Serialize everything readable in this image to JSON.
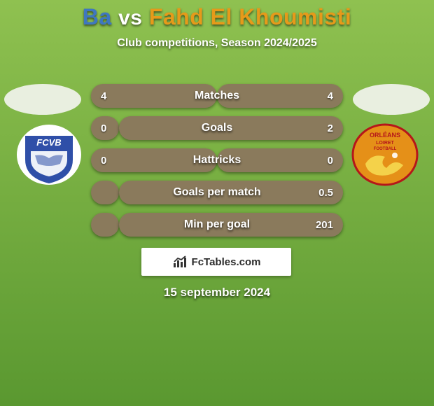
{
  "background": {
    "gradient_from": "#8fc150",
    "gradient_to": "#5a9830"
  },
  "title": {
    "player_a": "Ba",
    "vs": "vs",
    "player_b": "Fahd El Khoumisti",
    "color_a": "#3e77c0",
    "color_b": "#e69a1a"
  },
  "subtitle": "Club competitions, Season 2024/2025",
  "silhouette_color": "#e9efe0",
  "crests": {
    "left": {
      "fill": "#2f4fa8",
      "accent": "#ffffff",
      "text_top": "FCVB"
    },
    "right": {
      "fill": "#e59018",
      "accent": "#b5161a",
      "text_top": "ORLÉANS",
      "text_mid": "LOIRET",
      "text_bot": "FOOTBALL"
    }
  },
  "stats": {
    "bar_bg": "#8a7a5c",
    "track_width": 360,
    "min_half": 40,
    "rows": [
      {
        "label": "Matches",
        "a": "4",
        "b": "4",
        "wa": 180,
        "wb": 180
      },
      {
        "label": "Goals",
        "a": "0",
        "b": "2",
        "wa": 40,
        "wb": 320
      },
      {
        "label": "Hattricks",
        "a": "0",
        "b": "0",
        "wa": 180,
        "wb": 180
      },
      {
        "label": "Goals per match",
        "a": "",
        "b": "0.5",
        "wa": 40,
        "wb": 320
      },
      {
        "label": "Min per goal",
        "a": "",
        "b": "201",
        "wa": 40,
        "wb": 320
      }
    ]
  },
  "brand": "FcTables.com",
  "brand_icon_color": "#333333",
  "date": "15 september 2024"
}
